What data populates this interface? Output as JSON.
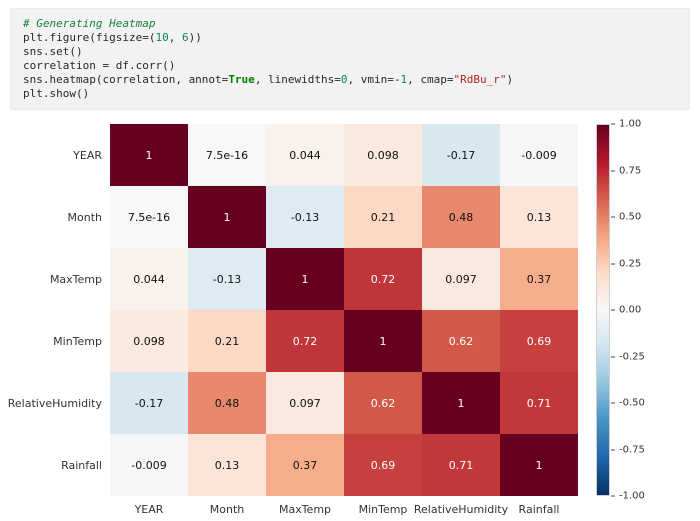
{
  "code_cell": {
    "lines": [
      [
        {
          "t": "# Generating Heatmap",
          "s": "comment"
        }
      ],
      [
        {
          "t": "plt.figure(figsize=(",
          "s": "plain"
        },
        {
          "t": "10",
          "s": "number"
        },
        {
          "t": ", ",
          "s": "plain"
        },
        {
          "t": "6",
          "s": "number"
        },
        {
          "t": "))",
          "s": "plain"
        }
      ],
      [
        {
          "t": "sns.set()",
          "s": "plain"
        }
      ],
      [
        {
          "t": "correlation = df.corr()",
          "s": "plain"
        }
      ],
      [
        {
          "t": "sns.heatmap(correlation, annot=",
          "s": "plain"
        },
        {
          "t": "True",
          "s": "keyword"
        },
        {
          "t": ", linewidths=",
          "s": "plain"
        },
        {
          "t": "0",
          "s": "number"
        },
        {
          "t": ", vmin=-",
          "s": "plain"
        },
        {
          "t": "1",
          "s": "number"
        },
        {
          "t": ", cmap=",
          "s": "plain"
        },
        {
          "t": "\"RdBu_r\"",
          "s": "string"
        },
        {
          "t": ")",
          "s": "plain"
        }
      ],
      [
        {
          "t": "plt.show()",
          "s": "plain"
        }
      ]
    ]
  },
  "chart_data": {
    "type": "heatmap",
    "title": "",
    "categories": [
      "YEAR",
      "Month",
      "MaxTemp",
      "MinTemp",
      "RelativeHumidity",
      "Rainfall"
    ],
    "values": [
      [
        1,
        7.5e-16,
        0.044,
        0.098,
        -0.17,
        -0.009
      ],
      [
        7.5e-16,
        1,
        -0.13,
        0.21,
        0.48,
        0.13
      ],
      [
        0.044,
        -0.13,
        1,
        0.72,
        0.097,
        0.37
      ],
      [
        0.098,
        0.21,
        0.72,
        1,
        0.62,
        0.69
      ],
      [
        -0.17,
        0.48,
        0.097,
        0.62,
        1,
        0.71
      ],
      [
        -0.009,
        0.13,
        0.37,
        0.69,
        0.71,
        1
      ]
    ],
    "annotations": [
      [
        "1",
        "7.5e-16",
        "0.044",
        "0.098",
        "-0.17",
        "-0.009"
      ],
      [
        "7.5e-16",
        "1",
        "-0.13",
        "0.21",
        "0.48",
        "0.13"
      ],
      [
        "0.044",
        "-0.13",
        "1",
        "0.72",
        "0.097",
        "0.37"
      ],
      [
        "0.098",
        "0.21",
        "0.72",
        "1",
        "0.62",
        "0.69"
      ],
      [
        "-0.17",
        "0.48",
        "0.097",
        "0.62",
        "1",
        "0.71"
      ],
      [
        "-0.009",
        "0.13",
        "0.37",
        "0.69",
        "0.71",
        "1"
      ]
    ],
    "vmin": -1,
    "vmax": 1,
    "colormap": "RdBu_r",
    "colormap_stops": [
      "#053061",
      "#2166ac",
      "#4393c3",
      "#92c5de",
      "#d1e5f0",
      "#f7f7f7",
      "#fddbc7",
      "#f4a582",
      "#d6604d",
      "#b2182b",
      "#67001f"
    ],
    "colorbar_ticks": [
      "1.00",
      "0.75",
      "0.50",
      "0.25",
      "0.00",
      "-0.25",
      "-0.50",
      "-0.75",
      "-1.00"
    ],
    "legend_position": "right",
    "grid": false
  }
}
